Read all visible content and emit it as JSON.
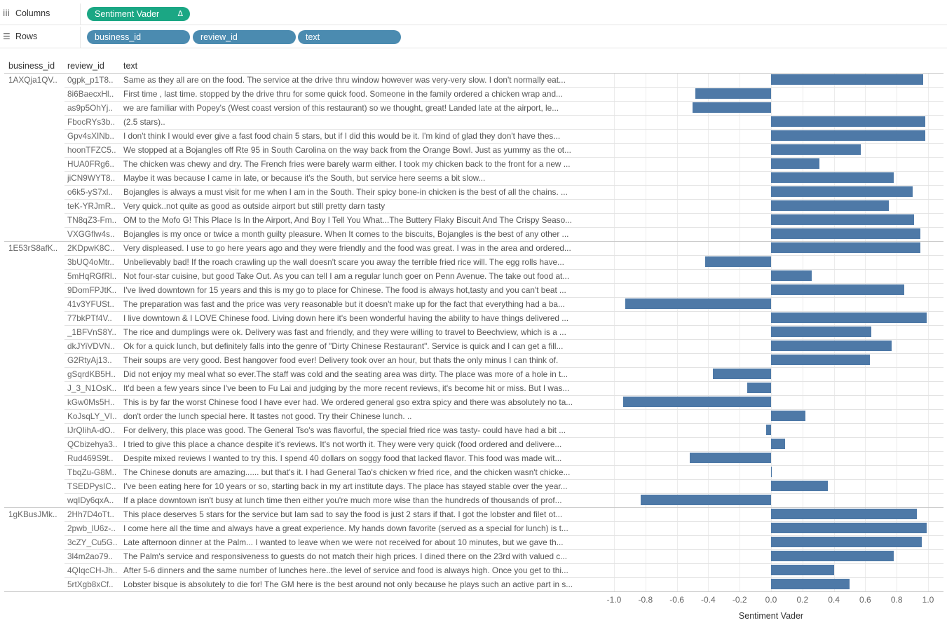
{
  "shelves": {
    "columns": {
      "label": "Columns",
      "pills": [
        "Sentiment Vader"
      ],
      "delta_icon": "Δ"
    },
    "rows": {
      "label": "Rows",
      "pills": [
        "business_id",
        "review_id",
        "text"
      ]
    }
  },
  "table": {
    "headers": [
      "business_id",
      "review_id",
      "text"
    ],
    "groups": [
      {
        "business_id": "1AXQja1QV..",
        "start": 0
      },
      {
        "business_id": "1E53rS8afK..",
        "start": 12
      },
      {
        "business_id": "1gKBusJMk..",
        "start": 31
      }
    ],
    "rows": [
      {
        "review_id": "0gpk_p1T8..",
        "text": "Same as they all are on the food. The service at the drive thru window however was very-very slow. I don't normally eat..."
      },
      {
        "review_id": "8i6BaecxHl..",
        "text": "First time , last time. stopped  by the drive thru for some quick food.  Someone in the family ordered a chicken wrap and..."
      },
      {
        "review_id": "as9p5OhYj..",
        "text": "we are familiar with Popey's (West coast version of this restaurant) so we thought, great! Landed late at the airport, le..."
      },
      {
        "review_id": "FbocRYs3b..",
        "text": "(2.5 stars).."
      },
      {
        "review_id": "Gpv4sXINb..",
        "text": "I don't think I would ever give a fast food chain 5 stars, but if I did this would be it. I'm kind of glad they don't have thes..."
      },
      {
        "review_id": "hoonTFZC5..",
        "text": "We stopped at a Bojangles off Rte 95 in South Carolina on the way back from the Orange Bowl. Just as yummy as the ot..."
      },
      {
        "review_id": "HUA0FRg6..",
        "text": "The chicken was chewy and dry. The French fries were barely warm either. I took my chicken back to the front for a new ..."
      },
      {
        "review_id": "jiCN9WYT8..",
        "text": "Maybe it was because I came in late, or because it's the South, but service here seems a bit slow..."
      },
      {
        "review_id": "o6k5-yS7xl..",
        "text": "Bojangles is always a must visit for me when I am in the South.  Their spicy bone-in chicken is the best of all the chains. ..."
      },
      {
        "review_id": "teK-YRJmR..",
        "text": "Very quick..not quite as good as outside airport but still pretty darn tasty"
      },
      {
        "review_id": "TN8qZ3-Fm..",
        "text": "OM to the Mofo G! This Place Is In the Airport, And Boy I Tell You What...The Buttery Flaky Biscuit  And The Crispy Seaso..."
      },
      {
        "review_id": "VXGGflw4s..",
        "text": "Bojangles is my once or twice a month guilty pleasure. When It comes to the biscuits, Bojangles is the best of any other ..."
      },
      {
        "review_id": "2KDpwK8C..",
        "text": "Very displeased. I use to go here years ago and they were friendly and the food was great. I was in the area and ordered..."
      },
      {
        "review_id": "3bUQ4oMtr..",
        "text": "Unbelievably bad! If the roach crawling up the wall doesn't scare you away the terrible fried rice will. The egg rolls have..."
      },
      {
        "review_id": "5mHqRGfRl..",
        "text": "Not four-star cuisine, but good Take Out.  As you can tell I am a regular lunch goer on Penn Avenue. The take out food at..."
      },
      {
        "review_id": "9DomFPJtK..",
        "text": "I've lived downtown for 15 years and this is my go to place for Chinese. The food is always hot,tasty and you can't beat ..."
      },
      {
        "review_id": "41v3YFUSt..",
        "text": "The preparation was fast and the price was very reasonable but it doesn't make up for the fact that everything had a ba..."
      },
      {
        "review_id": "77bkPTf4V..",
        "text": "I live downtown & I LOVE Chinese food. Living down here it's been wonderful having the ability to have things delivered ..."
      },
      {
        "review_id": "_1BFVnS8Y..",
        "text": "The rice and dumplings were ok. Delivery was fast and friendly, and they were willing to travel to Beechview, which is a ..."
      },
      {
        "review_id": "dkJYiVDVN..",
        "text": "Ok for a quick lunch, but definitely falls into the genre of \"Dirty Chinese Restaurant\".  Service is quick and I can get a fill..."
      },
      {
        "review_id": "G2RtyAj13..",
        "text": "Their soups are very good. Best hangover food ever! Delivery took over an hour, but thats the only minus I can think of."
      },
      {
        "review_id": "gSqrdKB5H..",
        "text": "Did not enjoy my meal what so ever.The staff was cold and the seating area was dirty. The place was more of a hole in t..."
      },
      {
        "review_id": "J_3_N1OsK..",
        "text": "It'd been a few years since I've been to Fu Lai and judging by the more recent reviews, it's become hit or miss.  But I was..."
      },
      {
        "review_id": "kGw0Ms5H..",
        "text": "This is by far the worst Chinese food I have ever had. We ordered general gso extra spicy and there was absolutely no ta..."
      },
      {
        "review_id": "KoJsqLY_VI..",
        "text": "don't order the lunch special here. It tastes not good. Try their Chinese lunch. .."
      },
      {
        "review_id": "lJrQIihA-dO..",
        "text": "For delivery, this place was good. The General Tso's was flavorful, the special fried rice was tasty- could have had a bit ..."
      },
      {
        "review_id": "QCbizehya3..",
        "text": "I tried to give this place a chance despite it's reviews. It's not worth it. They were very quick (food ordered and delivere..."
      },
      {
        "review_id": "Rud469S9t..",
        "text": "Despite mixed reviews I wanted to try this. I spend 40 dollars on soggy food that lacked flavor. This food was made wit..."
      },
      {
        "review_id": "TbqZu-G8M..",
        "text": "The Chinese donuts are amazing...... but that's it. I had General Tao's chicken w fried rice, and the chicken wasn't chicke..."
      },
      {
        "review_id": "TSEDPysIC..",
        "text": "I've been eating here for 10 years or so, starting back in my art institute days. The place has stayed stable over the year..."
      },
      {
        "review_id": "wqIDy6qxA..",
        "text": "If a place downtown isn't busy at lunch time then either you're much more wise than the hundreds of thousands of prof..."
      },
      {
        "review_id": "2Hh7D4oTt..",
        "text": "This place deserves 5 stars for the service but Iam sad to say the food is just 2 stars if that. I got the lobster and filet ot..."
      },
      {
        "review_id": "2pwb_lU6z-..",
        "text": "I come here all the time and always have a great experience. My hands down favorite (served as a special for lunch) is t..."
      },
      {
        "review_id": "3cZY_Cu5G..",
        "text": "Late afternoon dinner at the Palm... I wanted to leave when we were not received for about 10 minutes, but we gave th..."
      },
      {
        "review_id": "3l4m2ao79..",
        "text": "The Palm's service and responsiveness to guests do not match their high prices.  I dined there on the 23rd with valued c..."
      },
      {
        "review_id": "4QIqcCH-Jh..",
        "text": "After 5-6 dinners and the same number of lunches here..the level of service and food is always high.  Once you get to thi..."
      },
      {
        "review_id": "5rtXgb8xCf..",
        "text": "Lobster bisque is absolutely to die for! The GM here is the best around not only because he plays such an active part in s..."
      }
    ]
  },
  "chart_data": {
    "type": "bar",
    "orientation": "horizontal",
    "xlabel": "Sentiment Vader",
    "xlim": [
      -1.0,
      1.0
    ],
    "xticks": [
      "-1.0",
      "-0.8",
      "-0.6",
      "-0.4",
      "-0.2",
      "0.0",
      "0.2",
      "0.4",
      "0.6",
      "0.8",
      "1.0"
    ],
    "bar_color": "#4e79a7",
    "values": [
      0.97,
      -0.48,
      -0.5,
      0.98,
      0.98,
      0.57,
      0.31,
      0.78,
      0.9,
      0.75,
      0.91,
      0.95,
      0.95,
      -0.42,
      0.26,
      0.85,
      -0.93,
      0.99,
      0.64,
      0.77,
      0.63,
      -0.37,
      -0.15,
      -0.94,
      0.22,
      -0.03,
      0.09,
      -0.52,
      0.005,
      0.36,
      -0.83,
      0.93,
      0.99,
      0.96,
      0.78,
      0.4,
      0.5
    ]
  }
}
